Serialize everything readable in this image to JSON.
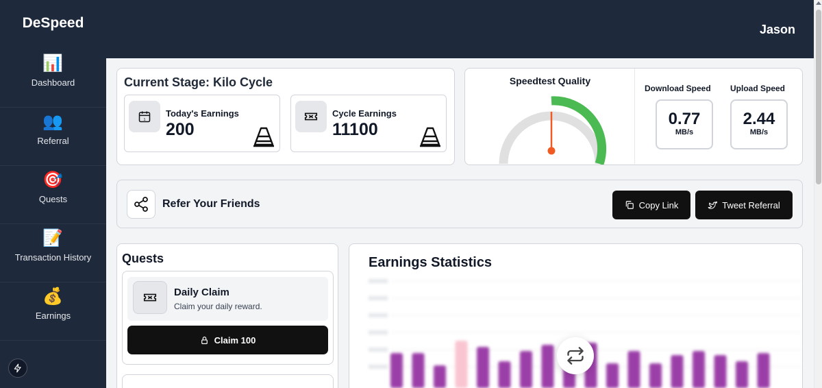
{
  "sidebar": {
    "brand": "DeSpeed",
    "items": [
      {
        "label": "Dashboard",
        "icon": "📊"
      },
      {
        "label": "Referral",
        "icon": "👥"
      },
      {
        "label": "Quests",
        "icon": "🎯"
      },
      {
        "label": "Transaction History",
        "icon": "📝"
      },
      {
        "label": "Earnings",
        "icon": "💰"
      }
    ]
  },
  "header": {
    "username": "Jason"
  },
  "stage": {
    "title": "Current Stage: Kilo Cycle",
    "today": {
      "label": "Today's Earnings",
      "value": "200"
    },
    "cycle": {
      "label": "Cycle Earnings",
      "value": "11100"
    }
  },
  "speed": {
    "quality_title": "Speedtest Quality",
    "download": {
      "label": "Download Speed",
      "value": "0.77",
      "unit": "MB/s"
    },
    "upload": {
      "label": "Upload Speed",
      "value": "2.44",
      "unit": "MB/s"
    },
    "colors": {
      "good": "#4cba52",
      "needle": "#f05a23",
      "track": "#e0e0e0"
    }
  },
  "refer": {
    "title": "Refer Your Friends",
    "copy_label": "Copy Link",
    "tweet_label": "Tweet Referral"
  },
  "quests": {
    "title": "Quests",
    "items": [
      {
        "name": "Daily Claim",
        "desc": "Claim your daily reward.",
        "button": "Claim 100"
      }
    ]
  },
  "stats": {
    "title": "Earnings Statistics"
  },
  "chart_data": {
    "type": "bar",
    "title": "Earnings Statistics",
    "values": [
      34,
      34,
      22,
      46,
      40,
      26,
      36,
      42,
      38,
      44,
      24,
      36,
      24,
      32,
      36,
      32,
      26,
      34
    ],
    "highlight_index": 3,
    "colors": {
      "bar": "#9b3fa8",
      "highlight": "#f9c5d1"
    }
  }
}
